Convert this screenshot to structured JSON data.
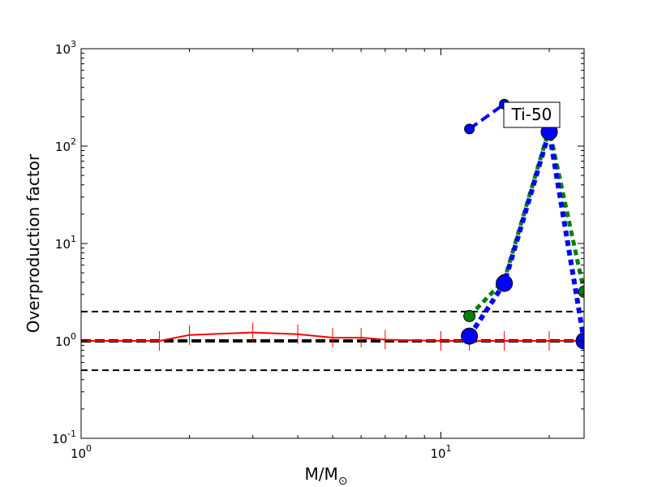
{
  "chart_data": {
    "type": "line",
    "title": "",
    "xlabel": "M/M",
    "xlabel_sub": "⊙",
    "ylabel": "Overproduction factor",
    "x_scale": "log",
    "y_scale": "log",
    "xlim": [
      1,
      25
    ],
    "ylim": [
      0.1,
      1000
    ],
    "grid": false,
    "legend": "none",
    "x_ticks": [
      {
        "value": 1,
        "base": "10",
        "exp": "0"
      },
      {
        "value": 10,
        "base": "10",
        "exp": "1"
      }
    ],
    "y_ticks": [
      {
        "value": 0.1,
        "base": "10",
        "exp": "-1"
      },
      {
        "value": 1,
        "base": "10",
        "exp": "0"
      },
      {
        "value": 10,
        "base": "10",
        "exp": "1"
      },
      {
        "value": 100,
        "base": "10",
        "exp": "2"
      },
      {
        "value": 1000,
        "base": "10",
        "exp": "3"
      }
    ],
    "annotation": "Ti-50",
    "reference_lines": [
      {
        "y": 2.0,
        "style": "dashed",
        "color": "#000000",
        "width": 2
      },
      {
        "y": 1.0,
        "style": "dashed",
        "color": "#000000",
        "width": 4
      },
      {
        "y": 0.5,
        "style": "dashed",
        "color": "#000000",
        "width": 2
      }
    ],
    "series": [
      {
        "style": "solid",
        "color": "#ff0000",
        "width": 2,
        "marker": "errorbar",
        "x": [
          1,
          1.65,
          2,
          3,
          4,
          5,
          6,
          7,
          10,
          12,
          15,
          20,
          25
        ],
        "y": [
          1.0,
          1.0,
          1.15,
          1.22,
          1.17,
          1.08,
          1.08,
          1.03,
          1.0,
          1.0,
          1.0,
          1.0,
          1.0
        ]
      },
      {
        "style": "dashed",
        "color": "#0000ff",
        "width": 4,
        "marker": "circle",
        "marker_size": 6,
        "x": [
          12,
          15
        ],
        "y": [
          150,
          270
        ]
      },
      {
        "style": "dotted",
        "color": "#008000",
        "width": 5,
        "marker": "circle",
        "marker_size": 7,
        "x": [
          12,
          15,
          20,
          25
        ],
        "y": [
          1.8,
          4.2,
          150,
          3.2
        ]
      },
      {
        "style": "dotted",
        "color": "#0000ff",
        "width": 6,
        "marker": "circle",
        "marker_size": 10,
        "x": [
          12,
          15,
          20,
          25
        ],
        "y": [
          1.12,
          3.9,
          140,
          1.0
        ]
      }
    ]
  }
}
